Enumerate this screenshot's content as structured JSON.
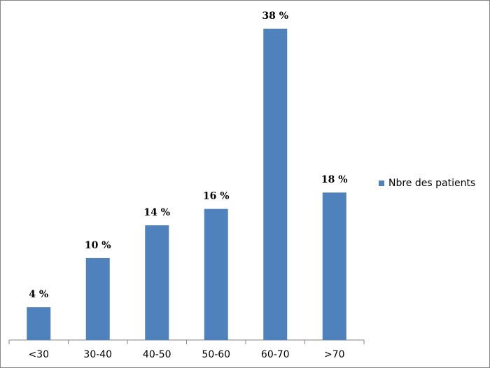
{
  "chart_data": {
    "type": "bar",
    "categories": [
      "<30",
      "30-40",
      "40-50",
      "50-60",
      "60-70",
      ">70"
    ],
    "series": [
      {
        "name": "Nbre des patients",
        "color": "#4f81bd",
        "values": [
          4,
          10,
          14,
          16,
          38,
          18
        ],
        "value_labels": [
          "4 %",
          "10 %",
          "14 %",
          "16 %",
          "38 %",
          "18 %"
        ]
      }
    ],
    "legend": "right"
  }
}
